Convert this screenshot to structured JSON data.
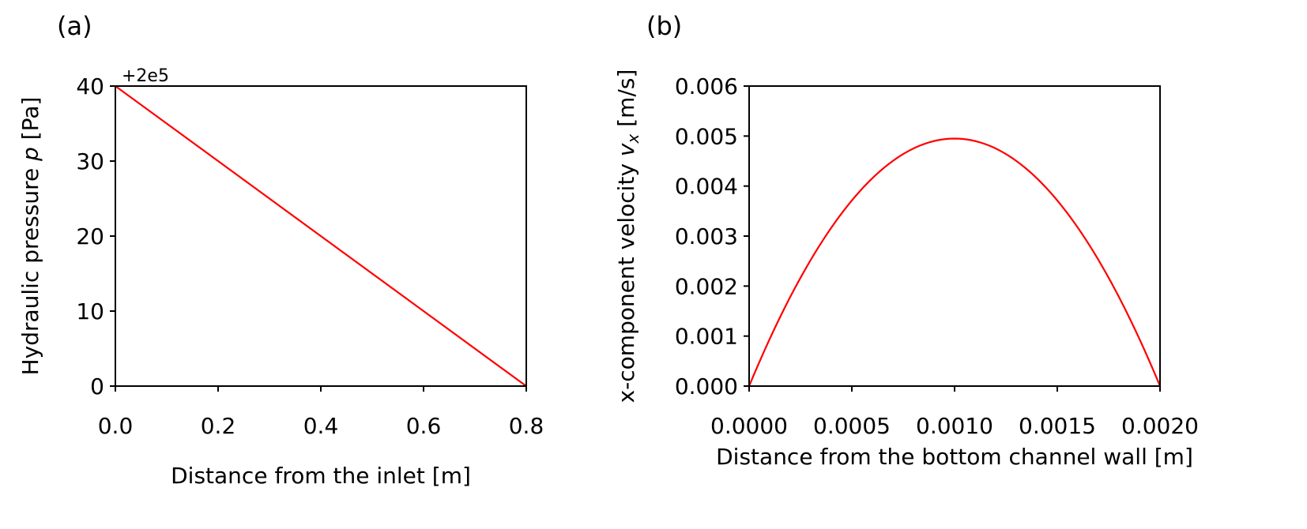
{
  "chart_data": [
    {
      "panel_label": "(a)",
      "type": "line",
      "title": "",
      "xlabel": "Distance from the inlet [m]",
      "ylabel_parts": [
        "Hydraulic pressure ",
        "p",
        " [Pa]"
      ],
      "y_offset_label": "+2e5",
      "xlim": [
        0.0,
        0.8
      ],
      "ylim": [
        0,
        40
      ],
      "xticks": [
        0.0,
        0.2,
        0.4,
        0.6,
        0.8
      ],
      "xtick_labels": [
        "0.0",
        "0.2",
        "0.4",
        "0.6",
        "0.8"
      ],
      "yticks": [
        0,
        10,
        20,
        30,
        40
      ],
      "ytick_labels": [
        "0",
        "10",
        "20",
        "30",
        "40"
      ],
      "grid": false,
      "series": [
        {
          "color": "#ff0000",
          "x": [
            0.0,
            0.8
          ],
          "y": [
            40,
            0
          ]
        }
      ]
    },
    {
      "panel_label": "(b)",
      "type": "line",
      "title": "",
      "xlabel": "Distance from the bottom channel wall [m]",
      "ylabel_parts": [
        "x-component velocity ",
        "v",
        "x",
        " [m/s]"
      ],
      "xlim": [
        0.0,
        0.002
      ],
      "ylim": [
        0.0,
        0.006
      ],
      "xticks": [
        0.0,
        0.0005,
        0.001,
        0.0015,
        0.002
      ],
      "xtick_labels": [
        "0.0000",
        "0.0005",
        "0.0010",
        "0.0015",
        "0.0020"
      ],
      "yticks": [
        0.0,
        0.001,
        0.002,
        0.003,
        0.004,
        0.005,
        0.006
      ],
      "ytick_labels": [
        "0.000",
        "0.001",
        "0.002",
        "0.003",
        "0.004",
        "0.005",
        "0.006"
      ],
      "grid": false,
      "series": [
        {
          "color": "#ff0000",
          "x": [
            0.0,
            0.0001,
            0.0002,
            0.0003,
            0.0004,
            0.0005,
            0.0006,
            0.0007,
            0.0008,
            0.0009,
            0.001,
            0.0011,
            0.0012,
            0.0013,
            0.0014,
            0.0015,
            0.0016,
            0.0017,
            0.0018,
            0.0019,
            0.002
          ],
          "y": [
            0.0,
            0.000945,
            0.00179,
            0.002535,
            0.00318,
            0.003725,
            0.00417,
            0.004515,
            0.00476,
            0.004905,
            0.00495,
            0.004905,
            0.00476,
            0.004515,
            0.00417,
            0.003725,
            0.00318,
            0.002535,
            0.00179,
            0.000945,
            0.0
          ]
        }
      ]
    }
  ]
}
